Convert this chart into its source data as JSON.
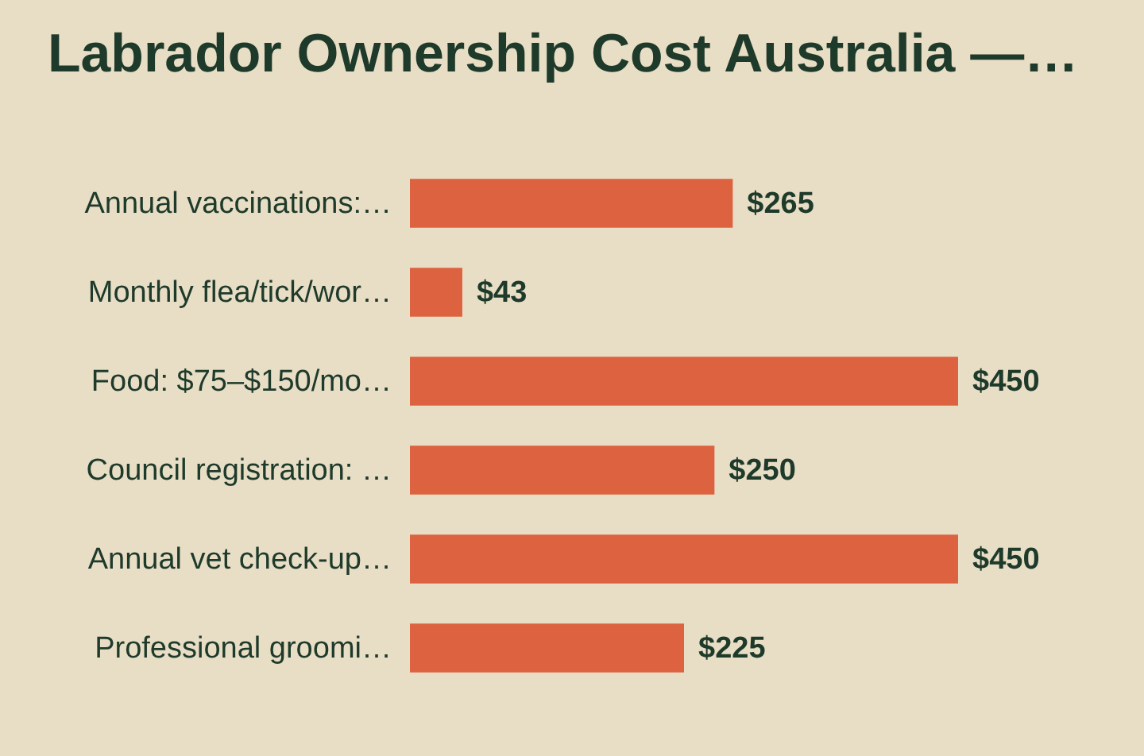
{
  "chart_data": {
    "type": "bar",
    "orientation": "horizontal",
    "title": "Labrador Ownership Cost Australia —…",
    "categories": [
      "Annual vaccinations:…",
      "Monthly flea/tick/wor…",
      "Food: $75–$150/mo…",
      "Council registration: …",
      "Annual vet check-up…",
      "Professional groomi…"
    ],
    "values": [
      265,
      43,
      450,
      250,
      450,
      225
    ],
    "value_labels": [
      "$265",
      "$43",
      "$450",
      "$250",
      "$450",
      "$225"
    ],
    "color": "#dc6240"
  }
}
